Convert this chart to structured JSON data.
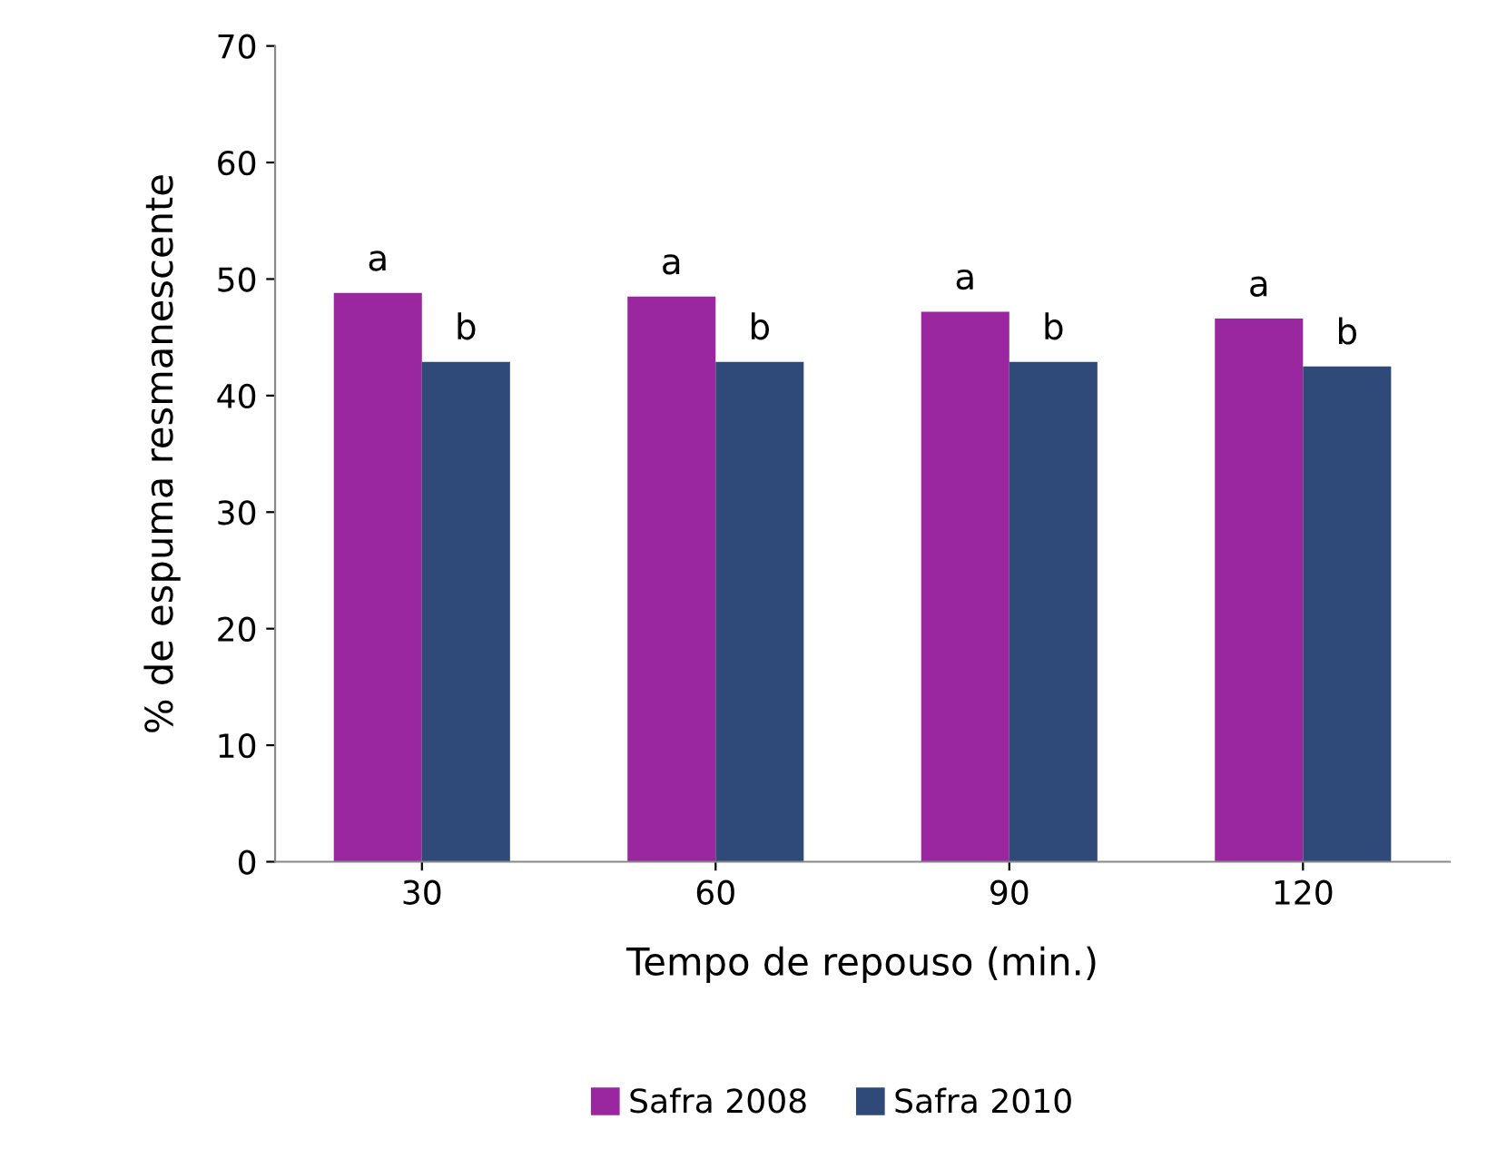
{
  "chart_data": {
    "type": "bar",
    "xlabel": "Tempo de repouso (min.)",
    "ylabel": "% de espuma resmanescente",
    "categories": [
      "30",
      "60",
      "90",
      "120"
    ],
    "series": [
      {
        "name": "Safra 2008",
        "color": "#9b27a0",
        "values": [
          48.8,
          48.5,
          47.2,
          46.6
        ],
        "value_labels": [
          "a",
          "a",
          "a",
          "a"
        ]
      },
      {
        "name": "Safra 2010",
        "color": "#2f4a78",
        "values": [
          42.9,
          42.9,
          42.9,
          42.5
        ],
        "value_labels": [
          "b",
          "b",
          "b",
          "b"
        ]
      }
    ],
    "ylim": [
      0,
      70
    ],
    "yticks": [
      0,
      10,
      20,
      30,
      40,
      50,
      60,
      70
    ],
    "grid": false,
    "legend": "bottom"
  }
}
